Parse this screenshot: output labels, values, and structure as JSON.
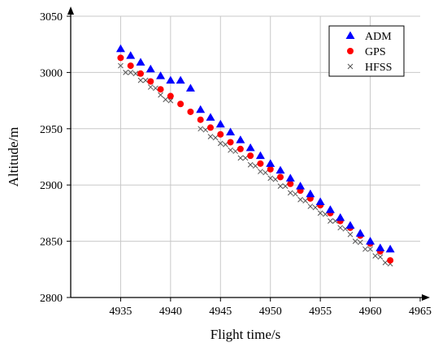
{
  "chart_data": {
    "type": "scatter",
    "title": "",
    "xlabel": "Flight time/s",
    "ylabel": "Altitude/m",
    "xlim": [
      4930,
      4965
    ],
    "ylim": [
      2800,
      3050
    ],
    "xticks": [
      4935,
      4940,
      4945,
      4950,
      4955,
      4960,
      4965
    ],
    "yticks": [
      2800,
      2850,
      2900,
      2950,
      3000,
      3050
    ],
    "grid": true,
    "legend_position": "top-right",
    "series": [
      {
        "name": "ADM",
        "marker": "triangle",
        "color": "#0000ff",
        "points": [
          [
            4935,
            3021
          ],
          [
            4936,
            3015
          ],
          [
            4937,
            3009
          ],
          [
            4938,
            3003
          ],
          [
            4939,
            2997
          ],
          [
            4940,
            2993
          ],
          [
            4941,
            2993
          ],
          [
            4942,
            2986
          ],
          [
            4943,
            2967
          ],
          [
            4944,
            2960
          ],
          [
            4945,
            2954
          ],
          [
            4946,
            2947
          ],
          [
            4947,
            2940
          ],
          [
            4948,
            2933
          ],
          [
            4949,
            2926
          ],
          [
            4950,
            2919
          ],
          [
            4951,
            2913
          ],
          [
            4952,
            2906
          ],
          [
            4953,
            2899
          ],
          [
            4954,
            2892
          ],
          [
            4955,
            2885
          ],
          [
            4956,
            2878
          ],
          [
            4957,
            2871
          ],
          [
            4958,
            2864
          ],
          [
            4959,
            2857
          ],
          [
            4960,
            2850
          ],
          [
            4961,
            2844
          ],
          [
            4962,
            2843
          ]
        ]
      },
      {
        "name": "GPS",
        "marker": "circle",
        "color": "#ff0000",
        "points": [
          [
            4935,
            3013
          ],
          [
            4936,
            3006
          ],
          [
            4937,
            2999
          ],
          [
            4938,
            2992
          ],
          [
            4939,
            2985
          ],
          [
            4940,
            2979
          ],
          [
            4941,
            2972
          ],
          [
            4942,
            2965
          ],
          [
            4943,
            2958
          ],
          [
            4944,
            2951
          ],
          [
            4945,
            2945
          ],
          [
            4946,
            2938
          ],
          [
            4947,
            2932
          ],
          [
            4948,
            2926
          ],
          [
            4949,
            2919
          ],
          [
            4950,
            2914
          ],
          [
            4951,
            2907
          ],
          [
            4952,
            2901
          ],
          [
            4953,
            2895
          ],
          [
            4954,
            2888
          ],
          [
            4955,
            2882
          ],
          [
            4956,
            2875
          ],
          [
            4957,
            2868
          ],
          [
            4958,
            2862
          ],
          [
            4959,
            2855
          ],
          [
            4960,
            2848
          ],
          [
            4961,
            2841
          ],
          [
            4962,
            2833
          ]
        ]
      },
      {
        "name": "HFSS",
        "marker": "x",
        "color": "#555555",
        "points": [
          [
            4935,
            3006
          ],
          [
            4935.5,
            3000
          ],
          [
            4936,
            3000
          ],
          [
            4936.5,
            2999
          ],
          [
            4937,
            2993
          ],
          [
            4937.5,
            2993
          ],
          [
            4938,
            2987
          ],
          [
            4938.5,
            2986
          ],
          [
            4939,
            2980
          ],
          [
            4939.5,
            2976
          ],
          [
            4940,
            2975
          ],
          [
            4943,
            2950
          ],
          [
            4943.5,
            2949
          ],
          [
            4944,
            2943
          ],
          [
            4944.5,
            2942
          ],
          [
            4945,
            2937
          ],
          [
            4945.5,
            2936
          ],
          [
            4946,
            2931
          ],
          [
            4946.5,
            2930
          ],
          [
            4947,
            2924
          ],
          [
            4947.5,
            2924
          ],
          [
            4948,
            2918
          ],
          [
            4948.5,
            2917
          ],
          [
            4949,
            2912
          ],
          [
            4949.5,
            2911
          ],
          [
            4950,
            2906
          ],
          [
            4950.5,
            2905
          ],
          [
            4951,
            2899
          ],
          [
            4951.5,
            2899
          ],
          [
            4952,
            2893
          ],
          [
            4952.5,
            2892
          ],
          [
            4953,
            2887
          ],
          [
            4953.5,
            2886
          ],
          [
            4954,
            2881
          ],
          [
            4954.5,
            2880
          ],
          [
            4955,
            2875
          ],
          [
            4955.5,
            2874
          ],
          [
            4956,
            2868
          ],
          [
            4956.5,
            2868
          ],
          [
            4957,
            2862
          ],
          [
            4957.5,
            2861
          ],
          [
            4958,
            2856
          ],
          [
            4958.5,
            2850
          ],
          [
            4959,
            2849
          ],
          [
            4959.5,
            2843
          ],
          [
            4960,
            2843
          ],
          [
            4960.5,
            2837
          ],
          [
            4961,
            2836
          ],
          [
            4961.5,
            2831
          ],
          [
            4962,
            2830
          ]
        ]
      }
    ]
  }
}
